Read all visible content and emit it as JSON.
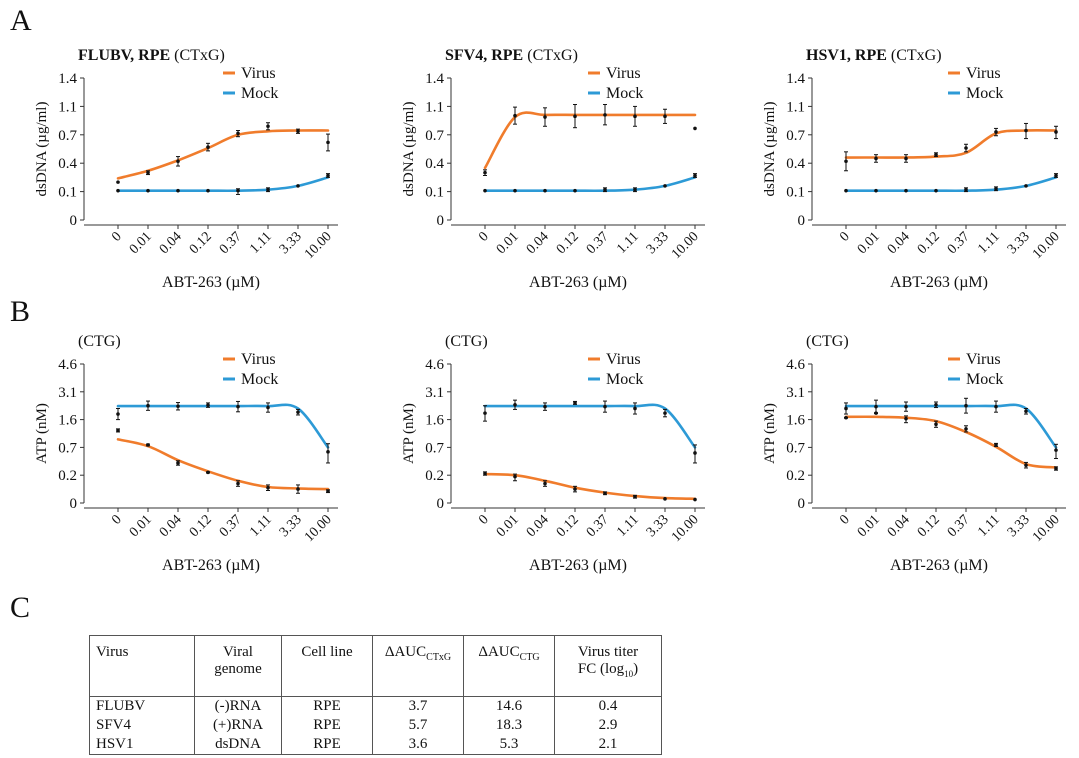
{
  "panel_letters": {
    "a": "A",
    "b": "B",
    "c": "C"
  },
  "x_categories": [
    "0",
    "0.01",
    "0.04",
    "0.12",
    "0.37",
    "1.11",
    "3.33",
    "10.00"
  ],
  "xlabel": "ABT-263 (µM)",
  "colors": {
    "virus": "#f07c2c",
    "mock": "#2d9ad6",
    "points": "#111111"
  },
  "chart_data": [
    {
      "type": "line",
      "panel": "A",
      "title_bold": "FLUBV, RPE",
      "title_normal": " (CTxG)",
      "ylabel": "dsDNA (µg/ml)",
      "yticks": [
        "0",
        "0.1",
        "0.4",
        "0.7",
        "1.1",
        "1.4"
      ],
      "ylim": [
        0,
        1.4
      ],
      "legend": "top-right",
      "series": [
        {
          "name": "Virus",
          "color": "#f07c2c",
          "curve": [
            0.24,
            0.32,
            0.43,
            0.56,
            0.7,
            0.75,
            0.76,
            0.76
          ],
          "points": [
            0.2,
            0.3,
            0.42,
            0.57,
            0.72,
            0.82,
            0.75,
            0.62
          ],
          "err": [
            0.0,
            0.02,
            0.05,
            0.04,
            0.04,
            0.05,
            0.03,
            0.09
          ]
        },
        {
          "name": "Mock",
          "color": "#2d9ad6",
          "curve": [
            0.11,
            0.11,
            0.11,
            0.11,
            0.11,
            0.12,
            0.16,
            0.25
          ],
          "points": [
            0.11,
            0.11,
            0.11,
            0.11,
            0.11,
            0.12,
            0.16,
            0.27
          ],
          "err": [
            0.0,
            0.0,
            0.0,
            0.0,
            0.02,
            0.02,
            0.0,
            0.02
          ]
        }
      ]
    },
    {
      "type": "line",
      "panel": "A",
      "title_bold": "SFV4, RPE",
      "title_normal": " (CTxG)",
      "ylabel": "dsDNA (µg/ml)",
      "yticks": [
        "0",
        "0.1",
        "0.4",
        "0.7",
        "1.1",
        "1.4"
      ],
      "ylim": [
        0,
        1.4
      ],
      "legend": "top-right",
      "series": [
        {
          "name": "Virus",
          "color": "#f07c2c",
          "curve": [
            0.35,
            0.95,
            0.98,
            0.98,
            0.98,
            0.98,
            0.98,
            0.98
          ],
          "points": [
            0.3,
            0.97,
            0.95,
            0.96,
            0.98,
            0.96,
            0.96,
            0.79
          ],
          "err": [
            0.03,
            0.12,
            0.13,
            0.16,
            0.14,
            0.14,
            0.1,
            0.0
          ]
        },
        {
          "name": "Mock",
          "color": "#2d9ad6",
          "curve": [
            0.11,
            0.11,
            0.11,
            0.11,
            0.11,
            0.12,
            0.16,
            0.25
          ],
          "points": [
            0.11,
            0.11,
            0.11,
            0.11,
            0.12,
            0.12,
            0.16,
            0.27
          ],
          "err": [
            0.0,
            0.0,
            0.0,
            0.0,
            0.02,
            0.02,
            0.0,
            0.02
          ]
        }
      ]
    },
    {
      "type": "line",
      "panel": "A",
      "title_bold": "HSV1, RPE",
      "title_normal": " (CTxG)",
      "ylabel": "dsDNA (µg/ml)",
      "yticks": [
        "0",
        "0.1",
        "0.4",
        "0.7",
        "1.1",
        "1.4"
      ],
      "ylim": [
        0,
        1.4
      ],
      "legend": "top-right",
      "series": [
        {
          "name": "Virus",
          "color": "#f07c2c",
          "curve": [
            0.46,
            0.46,
            0.46,
            0.47,
            0.51,
            0.72,
            0.76,
            0.76
          ],
          "points": [
            0.42,
            0.45,
            0.45,
            0.49,
            0.56,
            0.74,
            0.76,
            0.74
          ],
          "err": [
            0.1,
            0.04,
            0.04,
            0.02,
            0.04,
            0.05,
            0.1,
            0.08
          ]
        },
        {
          "name": "Mock",
          "color": "#2d9ad6",
          "curve": [
            0.11,
            0.11,
            0.11,
            0.11,
            0.11,
            0.12,
            0.16,
            0.25
          ],
          "points": [
            0.11,
            0.11,
            0.11,
            0.11,
            0.12,
            0.13,
            0.16,
            0.27
          ],
          "err": [
            0.0,
            0.0,
            0.0,
            0.0,
            0.02,
            0.02,
            0.0,
            0.02
          ]
        }
      ]
    },
    {
      "type": "line",
      "panel": "B",
      "title_bold": "",
      "title_normal": "(CTG)",
      "ylabel": "ATP (nM)",
      "yticks": [
        "0",
        "0.2",
        "0.7",
        "1.6",
        "3.1",
        "4.6"
      ],
      "ylim": [
        0,
        4.6
      ],
      "legend": "top-right",
      "series": [
        {
          "name": "Virus",
          "color": "#f07c2c",
          "curve": [
            0.96,
            0.74,
            0.47,
            0.27,
            0.16,
            0.115,
            0.105,
            0.1
          ],
          "points": [
            1.25,
            0.78,
            0.42,
            0.25,
            0.14,
            0.11,
            0.1,
            0.085
          ],
          "err": [
            0.05,
            0.03,
            0.04,
            0.01,
            0.02,
            0.02,
            0.03,
            0.01
          ]
        },
        {
          "name": "Mock",
          "color": "#2d9ad6",
          "curve": [
            2.33,
            2.33,
            2.33,
            2.33,
            2.33,
            2.33,
            2.2,
            0.7
          ],
          "points": [
            1.9,
            2.35,
            2.32,
            2.38,
            2.3,
            2.25,
            2.0,
            0.62
          ],
          "err": [
            0.3,
            0.25,
            0.2,
            0.12,
            0.28,
            0.25,
            0.15,
            0.2
          ]
        }
      ]
    },
    {
      "type": "line",
      "panel": "B",
      "title_bold": "",
      "title_normal": "(CTG)",
      "ylabel": "ATP (nM)",
      "yticks": [
        "0",
        "0.2",
        "0.7",
        "1.6",
        "3.1",
        "4.6"
      ],
      "ylim": [
        0,
        4.6
      ],
      "legend": "top-right",
      "series": [
        {
          "name": "Virus",
          "color": "#f07c2c",
          "curve": [
            0.22,
            0.2,
            0.16,
            0.11,
            0.075,
            0.05,
            0.035,
            0.03
          ],
          "points": [
            0.23,
            0.19,
            0.14,
            0.1,
            0.07,
            0.045,
            0.03,
            0.025
          ],
          "err": [
            0.03,
            0.03,
            0.02,
            0.02,
            0.01,
            0.01,
            0.0,
            0.0
          ]
        },
        {
          "name": "Mock",
          "color": "#2d9ad6",
          "curve": [
            2.33,
            2.33,
            2.33,
            2.33,
            2.33,
            2.33,
            2.2,
            0.7
          ],
          "points": [
            1.95,
            2.4,
            2.3,
            2.5,
            2.3,
            2.2,
            1.95,
            0.6
          ],
          "err": [
            0.4,
            0.25,
            0.2,
            0.08,
            0.3,
            0.3,
            0.2,
            0.18
          ]
        }
      ]
    },
    {
      "type": "line",
      "panel": "B",
      "title_bold": "",
      "title_normal": "(CTG)",
      "ylabel": "ATP (nM)",
      "yticks": [
        "0",
        "0.2",
        "0.7",
        "1.6",
        "3.1",
        "4.6"
      ],
      "ylim": [
        0,
        4.6
      ],
      "legend": "top-right",
      "series": [
        {
          "name": "Virus",
          "color": "#f07c2c",
          "curve": [
            1.75,
            1.75,
            1.7,
            1.55,
            1.2,
            0.72,
            0.4,
            0.34
          ],
          "points": [
            1.7,
            1.95,
            1.65,
            1.45,
            1.3,
            0.78,
            0.38,
            0.32
          ],
          "err": [
            0.02,
            0.02,
            0.15,
            0.1,
            0.1,
            0.05,
            0.05,
            0.03
          ]
        },
        {
          "name": "Mock",
          "color": "#2d9ad6",
          "curve": [
            2.33,
            2.33,
            2.33,
            2.33,
            2.33,
            2.33,
            2.2,
            0.7
          ],
          "points": [
            2.2,
            2.3,
            2.3,
            2.4,
            2.35,
            2.3,
            2.05,
            0.65
          ],
          "err": [
            0.3,
            0.35,
            0.25,
            0.15,
            0.4,
            0.3,
            0.15,
            0.15
          ]
        }
      ]
    }
  ],
  "table": {
    "headers": [
      {
        "main": "Virus",
        "sub": "",
        "line2": ""
      },
      {
        "main": "Viral",
        "sub": "",
        "line2": "genome"
      },
      {
        "main": "Cell line",
        "sub": "",
        "line2": ""
      },
      {
        "main": "ΔAUC",
        "sub": "CTxG",
        "line2": ""
      },
      {
        "main": "ΔAUC",
        "sub": "CTG",
        "line2": ""
      },
      {
        "main": "Virus titer",
        "sub": "",
        "line2": "FC (log",
        "line2_sub": "10",
        "line2_end": ")"
      }
    ],
    "rows": [
      [
        "FLUBV",
        "(-)RNA",
        "RPE",
        "3.7",
        "14.6",
        "0.4"
      ],
      [
        "SFV4",
        "(+)RNA",
        "RPE",
        "5.7",
        "18.3",
        "2.9"
      ],
      [
        "HSV1",
        "dsDNA",
        "RPE",
        "3.6",
        "5.3",
        "2.1"
      ]
    ]
  }
}
